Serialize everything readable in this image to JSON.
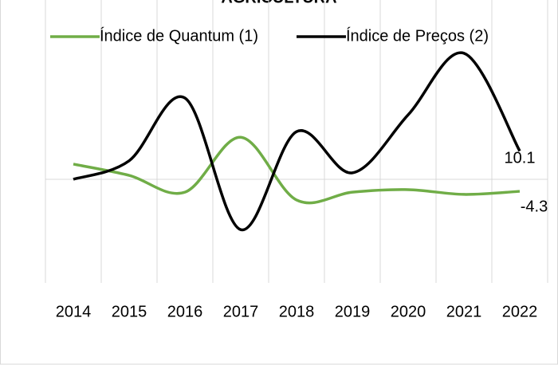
{
  "chart_data": {
    "type": "line",
    "title": "AGRICULTURA",
    "categories": [
      "2014",
      "2015",
      "2016",
      "2017",
      "2018",
      "2019",
      "2020",
      "2021",
      "2022"
    ],
    "series": [
      {
        "name": "Índice de Quantum (1)",
        "color": "#70ad47",
        "values": [
          5.4,
          1.4,
          -4.6,
          15,
          -7.4,
          -4.6,
          -3.7,
          -5.4,
          -4.3
        ],
        "value_labels": [
          null,
          null,
          null,
          null,
          null,
          null,
          null,
          null,
          "-4.3"
        ]
      },
      {
        "name": "Índice de Preços (2)",
        "color": "#000000",
        "values": [
          0,
          6.6,
          29,
          -18,
          17,
          2.3,
          23,
          45,
          10.1
        ],
        "value_labels": [
          null,
          null,
          null,
          null,
          null,
          null,
          null,
          null,
          "10.1"
        ]
      }
    ],
    "ylim": [
      -37,
      64
    ],
    "zero_line": true,
    "grid": true,
    "legend": "top"
  }
}
